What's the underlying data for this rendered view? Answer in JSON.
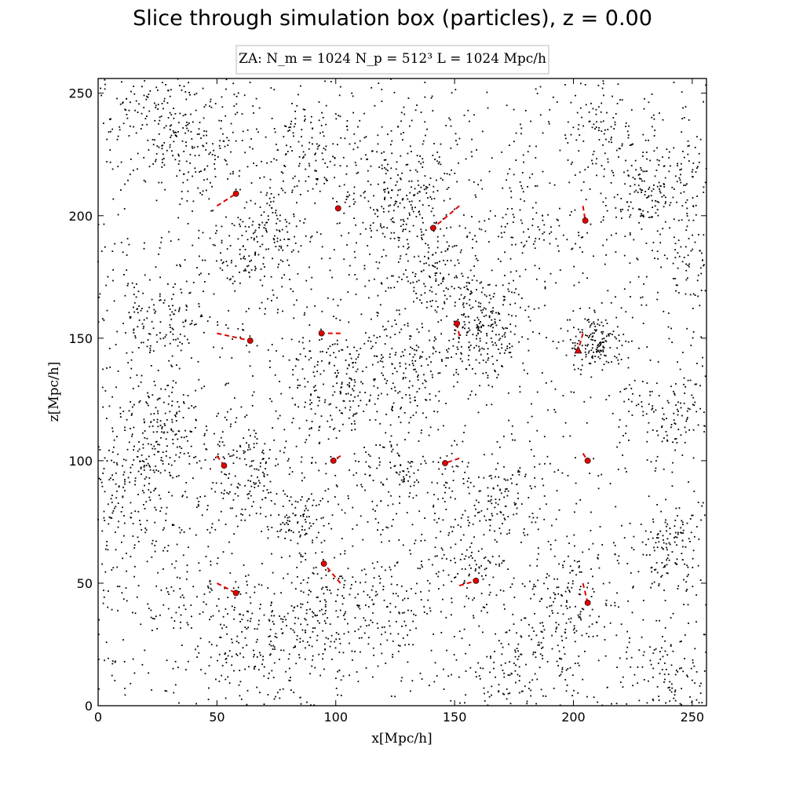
{
  "chart_data": {
    "type": "scatter",
    "title": "Slice through simulation box (particles), z = 0.00",
    "legend_text": "ZA:  N_m = 1024   N_p = 512³   L = 1024 Mpc/h",
    "legend_placement": "top-center",
    "xlabel": "x[Mpc/h]",
    "ylabel": "z[Mpc/h]",
    "xlim": [
      0,
      256
    ],
    "ylim": [
      0,
      256
    ],
    "xticks": [
      0,
      50,
      100,
      150,
      200,
      250
    ],
    "yticks": [
      0,
      50,
      100,
      150,
      200,
      250
    ],
    "grid": false,
    "particle_color": "#000000",
    "marker_color": "#e00000",
    "track_color": "#e00000",
    "clusters": [
      {
        "x": 25,
        "y": 240,
        "r": 12,
        "n": 140
      },
      {
        "x": 45,
        "y": 230,
        "r": 10,
        "n": 90
      },
      {
        "x": 85,
        "y": 225,
        "r": 10,
        "n": 110
      },
      {
        "x": 125,
        "y": 210,
        "r": 14,
        "n": 220
      },
      {
        "x": 140,
        "y": 175,
        "r": 12,
        "n": 150
      },
      {
        "x": 160,
        "y": 160,
        "r": 10,
        "n": 120
      },
      {
        "x": 165,
        "y": 150,
        "r": 8,
        "n": 100
      },
      {
        "x": 210,
        "y": 148,
        "r": 6,
        "n": 140
      },
      {
        "x": 235,
        "y": 210,
        "r": 10,
        "n": 180
      },
      {
        "x": 210,
        "y": 235,
        "r": 8,
        "n": 70
      },
      {
        "x": 25,
        "y": 155,
        "r": 10,
        "n": 120
      },
      {
        "x": 30,
        "y": 115,
        "r": 10,
        "n": 120
      },
      {
        "x": 20,
        "y": 105,
        "r": 10,
        "n": 100
      },
      {
        "x": 100,
        "y": 130,
        "r": 12,
        "n": 180
      },
      {
        "x": 130,
        "y": 140,
        "r": 10,
        "n": 120
      },
      {
        "x": 60,
        "y": 95,
        "r": 10,
        "n": 120
      },
      {
        "x": 130,
        "y": 95,
        "r": 10,
        "n": 110
      },
      {
        "x": 170,
        "y": 85,
        "r": 10,
        "n": 130
      },
      {
        "x": 85,
        "y": 75,
        "r": 8,
        "n": 100
      },
      {
        "x": 240,
        "y": 65,
        "r": 8,
        "n": 120
      },
      {
        "x": 90,
        "y": 35,
        "r": 10,
        "n": 130
      },
      {
        "x": 65,
        "y": 25,
        "r": 10,
        "n": 120
      },
      {
        "x": 180,
        "y": 20,
        "r": 12,
        "n": 140
      },
      {
        "x": 200,
        "y": 45,
        "r": 10,
        "n": 110
      },
      {
        "x": 240,
        "y": 10,
        "r": 10,
        "n": 90
      },
      {
        "x": 240,
        "y": 120,
        "r": 10,
        "n": 90
      },
      {
        "x": 10,
        "y": 75,
        "r": 10,
        "n": 90
      },
      {
        "x": 150,
        "y": 60,
        "r": 10,
        "n": 90
      },
      {
        "x": 60,
        "y": 185,
        "r": 10,
        "n": 80
      },
      {
        "x": 75,
        "y": 195,
        "r": 8,
        "n": 80
      },
      {
        "x": 185,
        "y": 195,
        "r": 12,
        "n": 80
      },
      {
        "x": 250,
        "y": 180,
        "r": 8,
        "n": 60
      },
      {
        "x": 120,
        "y": 40,
        "r": 10,
        "n": 90
      },
      {
        "x": 35,
        "y": 45,
        "r": 12,
        "n": 80
      }
    ],
    "background_particles": 1900,
    "tracked_particles": [
      {
        "x": 58,
        "y": 209,
        "tx": 50,
        "ty": 204,
        "marker": "circle"
      },
      {
        "x": 101,
        "y": 203,
        "tx": 101,
        "ty": 203,
        "marker": "circle"
      },
      {
        "x": 141,
        "y": 195,
        "tx": 152,
        "ty": 204,
        "marker": "circle"
      },
      {
        "x": 205,
        "y": 198,
        "tx": 204,
        "ty": 204,
        "marker": "circle"
      },
      {
        "x": 64,
        "y": 149,
        "tx": 50,
        "ty": 152,
        "marker": "circle"
      },
      {
        "x": 94,
        "y": 152,
        "tx": 102,
        "ty": 152,
        "marker": "circle"
      },
      {
        "x": 151,
        "y": 156,
        "tx": 152,
        "ty": 151,
        "marker": "circle"
      },
      {
        "x": 202,
        "y": 145,
        "tx": 204,
        "ty": 152,
        "marker": "triangle"
      },
      {
        "x": 53,
        "y": 98,
        "tx": 50,
        "ty": 102,
        "marker": "circle"
      },
      {
        "x": 99,
        "y": 100,
        "tx": 102,
        "ty": 102,
        "marker": "circle"
      },
      {
        "x": 146,
        "y": 99,
        "tx": 152,
        "ty": 101,
        "marker": "circle"
      },
      {
        "x": 206,
        "y": 100,
        "tx": 204,
        "ty": 103,
        "marker": "circle"
      },
      {
        "x": 95,
        "y": 58,
        "tx": 102,
        "ty": 50,
        "marker": "circle"
      },
      {
        "x": 58,
        "y": 46,
        "tx": 50,
        "ty": 50,
        "marker": "circle"
      },
      {
        "x": 159,
        "y": 51,
        "tx": 152,
        "ty": 49,
        "marker": "circle"
      },
      {
        "x": 206,
        "y": 42,
        "tx": 204,
        "ty": 50,
        "marker": "circle"
      }
    ]
  }
}
